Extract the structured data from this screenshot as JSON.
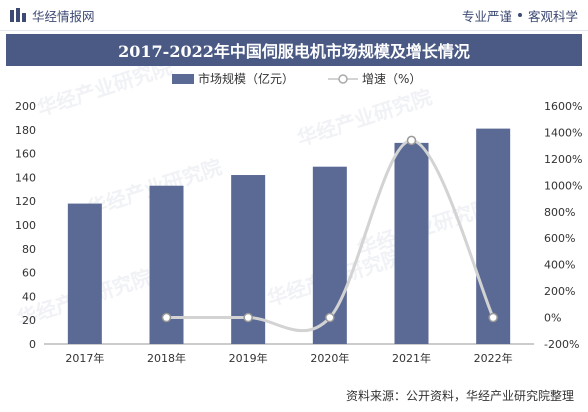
{
  "header": {
    "brand": "华经情报网",
    "slogan_left": "专业严谨",
    "slogan_right": "客观科学"
  },
  "title": "2017-2022年中国伺服电机市场规模及增长情况",
  "watermark": "华经产业研究院",
  "source": "资料来源：公开资料，华经产业研究院整理",
  "colors": {
    "bar": "#5b6a94",
    "line": "#d3d3d3",
    "title_bg": "#4a5a85"
  },
  "chart_data": {
    "type": "bar",
    "categories": [
      "2017年",
      "2018年",
      "2019年",
      "2020年",
      "2021年",
      "2022年"
    ],
    "series": [
      {
        "name": "市场规模（亿元）",
        "type": "bar",
        "axis": "left",
        "values": [
          118,
          133,
          142,
          149,
          169,
          181
        ]
      },
      {
        "name": "增速（%）",
        "type": "line",
        "axis": "right",
        "values": [
          null,
          0,
          0,
          0,
          1340,
          0
        ]
      }
    ],
    "y_left": {
      "min": 0,
      "max": 200,
      "ticks": [
        0,
        20,
        40,
        60,
        80,
        100,
        120,
        140,
        160,
        180,
        200
      ]
    },
    "y_right": {
      "min": -200,
      "max": 1600,
      "ticks": [
        "-200%",
        "0%",
        "200%",
        "400%",
        "600%",
        "800%",
        "1000%",
        "1200%",
        "1400%",
        "1600%"
      ]
    },
    "legend_position": "top",
    "grid": false
  }
}
